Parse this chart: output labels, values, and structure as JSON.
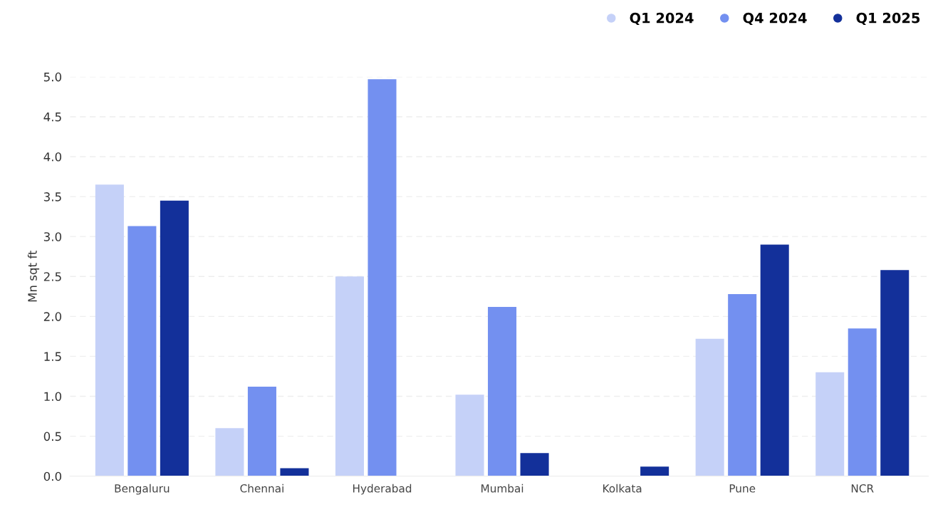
{
  "chart_data": {
    "type": "bar",
    "ylabel": "Mn sqt ft",
    "categories": [
      "Bengaluru",
      "Chennai",
      "Hyderabad",
      "Mumbai",
      "Kolkata",
      "Pune",
      "NCR"
    ],
    "series": [
      {
        "name": "Q1 2024",
        "color": "#c5d1f8",
        "values": [
          3.65,
          0.6,
          2.5,
          1.02,
          0,
          1.72,
          1.3
        ]
      },
      {
        "name": "Q4 2024",
        "color": "#7390f0",
        "values": [
          3.13,
          1.12,
          4.97,
          2.12,
          0,
          2.28,
          1.85
        ]
      },
      {
        "name": "Q1 2025",
        "color": "#13309a",
        "values": [
          3.45,
          0.1,
          0,
          0.29,
          0.12,
          2.9,
          2.58
        ]
      }
    ],
    "ylim": [
      0,
      5
    ],
    "yticks": [
      {
        "value": 0,
        "label": "0.0"
      },
      {
        "value": 0.5,
        "label": "0.5"
      },
      {
        "value": 1,
        "label": "1.0"
      },
      {
        "value": 1.5,
        "label": "1.5"
      },
      {
        "value": 2,
        "label": "2.0"
      },
      {
        "value": 2.5,
        "label": "2.5"
      },
      {
        "value": 3,
        "label": "3.0"
      },
      {
        "value": 3.5,
        "label": "3.5"
      },
      {
        "value": 4,
        "label": "4.0"
      },
      {
        "value": 4.5,
        "label": "4.5"
      },
      {
        "value": 5,
        "label": "5.0"
      }
    ],
    "grid": "y",
    "legend": "top right"
  }
}
